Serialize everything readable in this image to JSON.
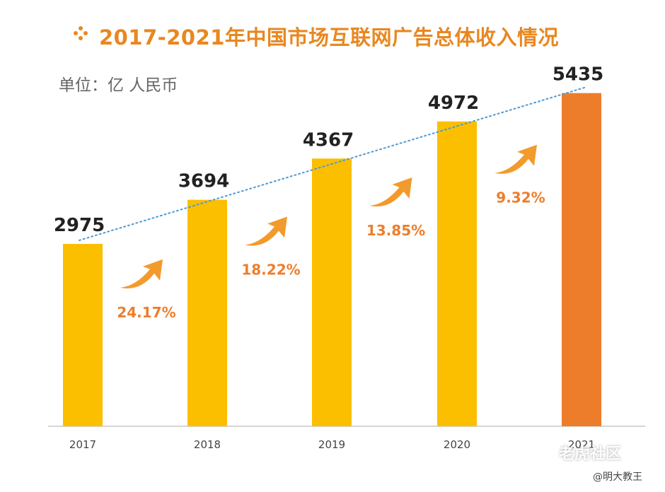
{
  "title": "2017-2021年中国市场互联网广告总体收入情况",
  "unit_label": "单位：亿 人民币",
  "chart_data": {
    "type": "bar",
    "title": "2017-2021年中国市场互联网广告总体收入情况",
    "ylabel": "亿 人民币",
    "categories": [
      "2017",
      "2018",
      "2019",
      "2020",
      "2021"
    ],
    "values": [
      2975,
      3694,
      4367,
      4972,
      5435
    ],
    "growth_rates": [
      "24.17%",
      "18.22%",
      "13.85%",
      "9.32%"
    ],
    "ylim": [
      0,
      5800
    ],
    "trendline": true
  },
  "colors": {
    "bar": "#fbbf00",
    "bar_highlight": "#ee7d2b",
    "title": "#e9871f",
    "growth_text": "#ee7d2b",
    "trendline": "#4a9ad6"
  },
  "watermark": {
    "site": "老虎社区",
    "author": "@明大教王"
  }
}
